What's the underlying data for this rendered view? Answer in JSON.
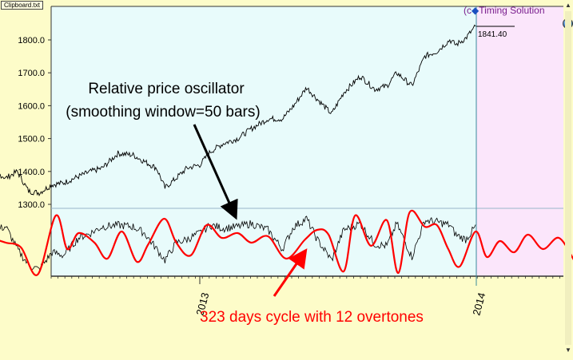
{
  "window": {
    "tab_label": "Clipboard.txt",
    "brand_prefix": "(c",
    "brand_text": "Timing Solution"
  },
  "icons": {
    "brand": "diamond-icon",
    "globe": "globe-icon",
    "scroll_up": "arrow-up-icon",
    "scroll_down": "arrow-down-icon"
  },
  "chart_data": {
    "type": "line",
    "price_panel": {
      "yticks": [
        1300,
        1400,
        1500,
        1600,
        1700,
        1800
      ],
      "ytick_labels": [
        "1300.0",
        "1400.0",
        "1500.0",
        "1600.0",
        "1700.0",
        "1800.0"
      ],
      "ylim": [
        1280,
        1900
      ],
      "last_price_label": "1841.40",
      "series": [
        {
          "color": "#000000",
          "points": [
            [
              "2012-01-03",
              1310
            ],
            [
              "2012-01-20",
              1330
            ],
            [
              "2012-02-10",
              1350
            ],
            [
              "2012-03-01",
              1370
            ],
            [
              "2012-03-20",
              1405
            ],
            [
              "2012-04-05",
              1400
            ],
            [
              "2012-04-20",
              1380
            ],
            [
              "2012-05-05",
              1400
            ],
            [
              "2012-05-20",
              1340
            ],
            [
              "2012-06-03",
              1335
            ],
            [
              "2012-06-20",
              1360
            ],
            [
              "2012-07-05",
              1365
            ],
            [
              "2012-07-25",
              1385
            ],
            [
              "2012-08-10",
              1400
            ],
            [
              "2012-08-25",
              1410
            ],
            [
              "2012-09-15",
              1455
            ],
            [
              "2012-10-05",
              1450
            ],
            [
              "2012-10-20",
              1430
            ],
            [
              "2012-11-05",
              1410
            ],
            [
              "2012-11-16",
              1350
            ],
            [
              "2012-12-01",
              1380
            ],
            [
              "2012-12-15",
              1410
            ],
            [
              "2013-01-01",
              1420
            ],
            [
              "2013-01-15",
              1460
            ],
            [
              "2013-02-01",
              1485
            ],
            [
              "2013-02-20",
              1500
            ],
            [
              "2013-03-10",
              1530
            ],
            [
              "2013-04-01",
              1560
            ],
            [
              "2013-04-20",
              1560
            ],
            [
              "2013-05-05",
              1600
            ],
            [
              "2013-05-22",
              1655
            ],
            [
              "2013-06-05",
              1620
            ],
            [
              "2013-06-24",
              1575
            ],
            [
              "2013-07-10",
              1640
            ],
            [
              "2013-08-01",
              1690
            ],
            [
              "2013-08-20",
              1650
            ],
            [
              "2013-09-05",
              1660
            ],
            [
              "2013-09-18",
              1700
            ],
            [
              "2013-10-08",
              1660
            ],
            [
              "2013-10-25",
              1750
            ],
            [
              "2013-11-10",
              1765
            ],
            [
              "2013-11-27",
              1800
            ],
            [
              "2013-12-05",
              1785
            ],
            [
              "2013-12-18",
              1805
            ],
            [
              "2013-12-31",
              1841.4
            ]
          ]
        }
      ]
    },
    "oscillator_panel": {
      "ylim": [
        -1,
        1
      ],
      "series": [
        {
          "color": "#000000",
          "points": [
            [
              "2012-01-03",
              -0.35
            ],
            [
              "2012-01-20",
              0.25
            ],
            [
              "2012-02-10",
              0.3
            ],
            [
              "2012-03-01",
              0.45
            ],
            [
              "2012-03-20",
              0.7
            ],
            [
              "2012-04-05",
              0.4
            ],
            [
              "2012-04-20",
              0.5
            ],
            [
              "2012-05-05",
              -0.2
            ],
            [
              "2012-05-20",
              -0.7
            ],
            [
              "2012-06-03",
              -0.85
            ],
            [
              "2012-06-20",
              -0.3
            ],
            [
              "2012-07-05",
              -0.4
            ],
            [
              "2012-07-25",
              0.15
            ],
            [
              "2012-08-10",
              0.3
            ],
            [
              "2012-08-25",
              0.5
            ],
            [
              "2012-09-15",
              0.55
            ],
            [
              "2012-10-05",
              0.5
            ],
            [
              "2012-10-20",
              0.3
            ],
            [
              "2012-11-05",
              -0.2
            ],
            [
              "2012-11-16",
              -0.55
            ],
            [
              "2012-12-01",
              0.0
            ],
            [
              "2012-12-15",
              0.1
            ],
            [
              "2013-01-01",
              0.3
            ],
            [
              "2013-01-15",
              0.55
            ],
            [
              "2013-02-01",
              0.45
            ],
            [
              "2013-02-20",
              0.5
            ],
            [
              "2013-03-10",
              0.6
            ],
            [
              "2013-04-01",
              0.4
            ],
            [
              "2013-04-20",
              -0.2
            ],
            [
              "2013-05-05",
              0.5
            ],
            [
              "2013-05-22",
              0.75
            ],
            [
              "2013-06-05",
              0.1
            ],
            [
              "2013-06-24",
              -0.55
            ],
            [
              "2013-07-10",
              0.4
            ],
            [
              "2013-08-01",
              0.6
            ],
            [
              "2013-08-20",
              -0.05
            ],
            [
              "2013-09-05",
              -0.1
            ],
            [
              "2013-09-18",
              0.6
            ],
            [
              "2013-10-08",
              -0.45
            ],
            [
              "2013-10-25",
              0.7
            ],
            [
              "2013-11-10",
              0.65
            ],
            [
              "2013-11-27",
              0.55
            ],
            [
              "2013-12-05",
              0.25
            ],
            [
              "2013-12-18",
              0.1
            ],
            [
              "2013-12-31",
              0.5
            ]
          ]
        },
        {
          "color": "#ff0000",
          "points": [
            [
              "2012-01-03",
              0.2
            ],
            [
              "2012-01-20",
              -0.2
            ],
            [
              "2012-02-05",
              -0.65
            ],
            [
              "2012-02-25",
              -0.3
            ],
            [
              "2012-03-15",
              0.35
            ],
            [
              "2012-04-01",
              0.15
            ],
            [
              "2012-04-20",
              0.0
            ],
            [
              "2012-05-10",
              -0.15
            ],
            [
              "2012-06-01",
              -1.0
            ],
            [
              "2012-06-25",
              0.85
            ],
            [
              "2012-07-10",
              -0.2
            ],
            [
              "2012-07-25",
              0.3
            ],
            [
              "2012-08-15",
              0.0
            ],
            [
              "2012-09-01",
              -0.5
            ],
            [
              "2012-09-20",
              0.35
            ],
            [
              "2012-10-10",
              -0.6
            ],
            [
              "2012-10-25",
              -0.05
            ],
            [
              "2012-11-15",
              0.75
            ],
            [
              "2012-12-01",
              0.0
            ],
            [
              "2012-12-20",
              -0.4
            ],
            [
              "2013-01-10",
              0.55
            ],
            [
              "2013-01-30",
              0.15
            ],
            [
              "2013-02-20",
              0.3
            ],
            [
              "2013-03-10",
              0.0
            ],
            [
              "2013-04-01",
              0.2
            ],
            [
              "2013-04-25",
              -0.5
            ],
            [
              "2013-05-20",
              0.1
            ],
            [
              "2013-06-05",
              0.4
            ],
            [
              "2013-06-20",
              0.25
            ],
            [
              "2013-07-10",
              -0.9
            ],
            [
              "2013-07-25",
              0.85
            ],
            [
              "2013-08-15",
              -0.1
            ],
            [
              "2013-09-05",
              0.7
            ],
            [
              "2013-09-20",
              -0.95
            ],
            [
              "2013-10-05",
              0.95
            ],
            [
              "2013-10-25",
              0.5
            ],
            [
              "2013-11-10",
              0.55
            ],
            [
              "2013-11-25",
              -0.2
            ],
            [
              "2013-12-10",
              -0.75
            ],
            [
              "2013-12-31",
              0.35
            ],
            [
              "2014-01-15",
              -0.45
            ],
            [
              "2014-02-01",
              0.05
            ],
            [
              "2014-02-20",
              -0.3
            ],
            [
              "2014-03-10",
              0.25
            ],
            [
              "2014-03-30",
              -0.2
            ],
            [
              "2014-04-20",
              0.15
            ],
            [
              "2014-05-10",
              -0.55
            ]
          ]
        }
      ]
    },
    "x_axis": {
      "xlim": [
        "2012-01-03",
        "2014-05-10"
      ],
      "tick_labels": [
        {
          "date": "2013-01-01",
          "label": "2013"
        },
        {
          "date": "2014-01-01",
          "label": "2014"
        }
      ],
      "marker_date": "2014-01-01"
    },
    "annotations": [
      {
        "text": "Relative price oscillator",
        "color": "#000000"
      },
      {
        "text": "(smoothing window=50 bars)",
        "color": "#000000"
      },
      {
        "text": "323 days cycle with 12 overtones",
        "color": "#ff0000"
      }
    ],
    "colors": {
      "background": "#fdfcc9",
      "history_panel": "#e8fbfb",
      "forecast_panel": "#fbe6fb",
      "cursor_line": "#3a8b9c",
      "ref_line": "#98b5c8"
    }
  }
}
